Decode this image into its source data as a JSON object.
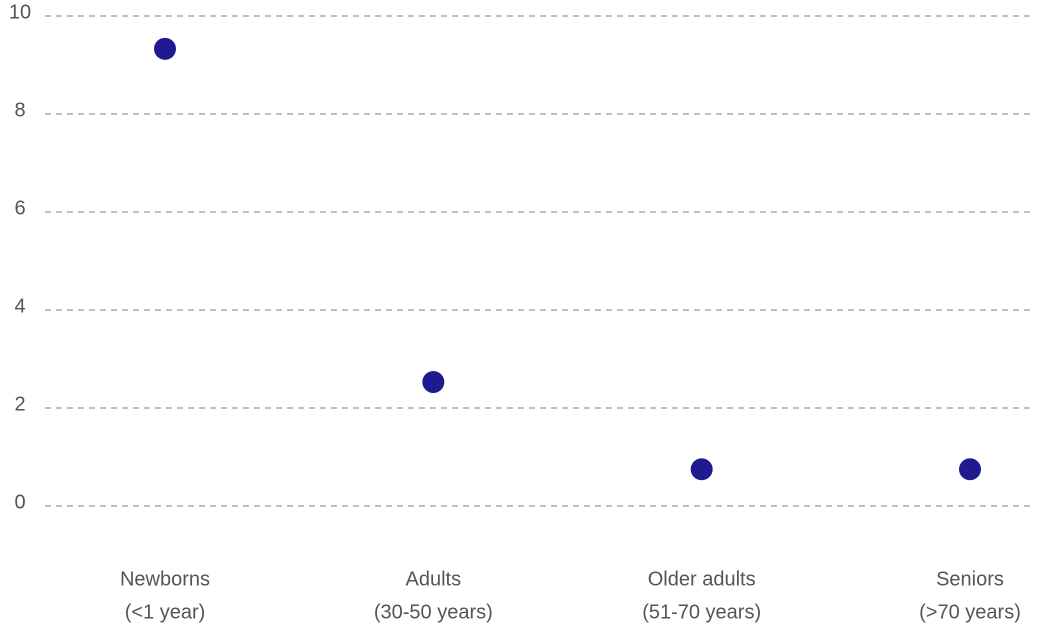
{
  "chart_data": {
    "type": "line",
    "categories": [
      [
        "Newborns",
        "(<1 year)"
      ],
      [
        "Adults",
        "(30-50 years)"
      ],
      [
        "Older adults",
        "(51-70 years)"
      ],
      [
        "Seniors",
        "(>70 years)"
      ]
    ],
    "series": [
      {
        "name": null,
        "color": "#1f1a8f",
        "values": [
          9.33,
          2.53,
          0.75,
          0.75
        ]
      }
    ],
    "ylim": [
      0,
      10
    ],
    "yticks": [
      0,
      2,
      4,
      6,
      8,
      10
    ],
    "grid": true
  }
}
